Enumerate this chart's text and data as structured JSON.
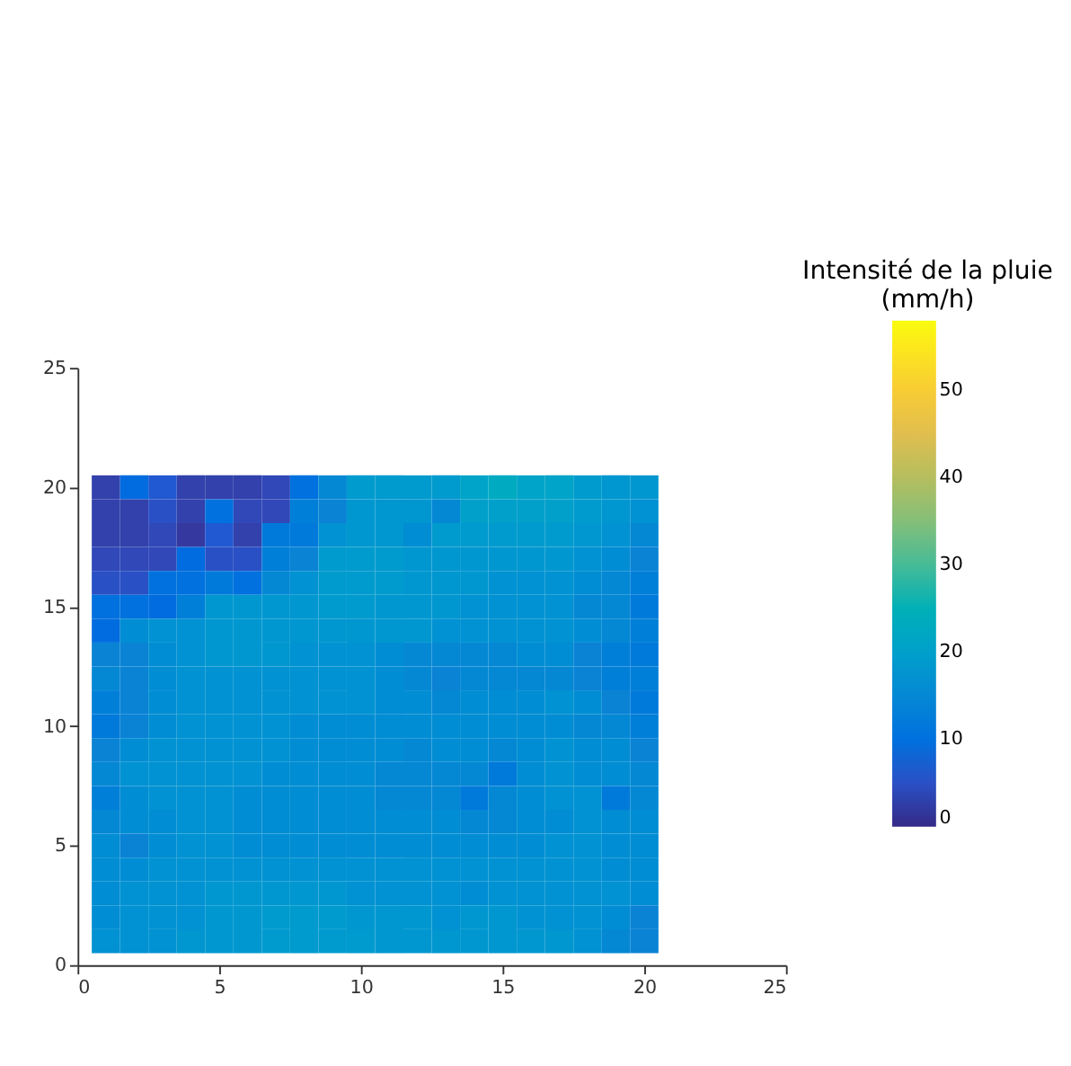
{
  "chart_data": {
    "type": "heatmap",
    "clabel": "Intensité de la pluie\n(mm/h)",
    "x": [
      1,
      2,
      3,
      4,
      5,
      6,
      7,
      8,
      9,
      10,
      11,
      12,
      13,
      14,
      15,
      16,
      17,
      18,
      19,
      20
    ],
    "y": [
      20,
      19,
      18,
      17,
      16,
      15,
      14,
      13,
      12,
      11,
      10,
      9,
      8,
      7,
      6,
      5,
      4,
      3,
      2,
      1
    ],
    "xlim": [
      0,
      25
    ],
    "ylim": [
      0,
      25
    ],
    "xticks": [
      0,
      5,
      10,
      15,
      20,
      25
    ],
    "yticks": [
      0,
      5,
      10,
      15,
      20,
      25
    ],
    "clim": [
      0,
      58
    ],
    "cticks": [
      0,
      10,
      20,
      30,
      40,
      50
    ],
    "grid": false,
    "cells": [
      [
        3,
        9,
        6,
        3,
        3,
        3,
        4,
        10,
        15,
        19,
        19,
        19,
        19,
        21,
        23,
        21,
        21,
        19,
        18,
        18
      ],
      [
        3,
        3,
        5,
        3,
        10,
        4,
        4,
        13,
        14,
        18,
        18,
        18,
        15,
        20,
        20,
        20,
        20,
        19,
        18,
        17
      ],
      [
        3,
        3,
        4,
        2,
        6,
        3,
        12,
        12,
        17,
        18,
        18,
        16,
        19,
        19,
        19,
        19,
        19,
        18,
        17,
        15
      ],
      [
        4,
        4,
        4,
        9,
        5,
        5,
        13,
        14,
        19,
        19,
        19,
        18,
        18,
        18,
        18,
        18,
        18,
        17,
        16,
        14
      ],
      [
        5,
        5,
        10,
        10,
        12,
        10,
        15,
        17,
        19,
        19,
        19,
        18,
        18,
        18,
        17,
        17,
        17,
        16,
        15,
        13
      ],
      [
        10,
        10,
        9,
        13,
        18,
        18,
        18,
        18,
        19,
        19,
        18,
        18,
        18,
        17,
        17,
        17,
        17,
        15,
        15,
        12
      ],
      [
        9,
        16,
        17,
        17,
        18,
        18,
        18,
        18,
        18,
        18,
        18,
        18,
        17,
        17,
        17,
        17,
        17,
        16,
        15,
        13
      ],
      [
        14,
        14,
        16,
        17,
        18,
        18,
        18,
        17,
        17,
        17,
        16,
        15,
        15,
        15,
        15,
        16,
        16,
        14,
        13,
        12
      ],
      [
        15,
        14,
        16,
        17,
        17,
        17,
        17,
        17,
        17,
        17,
        16,
        15,
        14,
        15,
        15,
        15,
        15,
        14,
        13,
        13
      ],
      [
        13,
        14,
        16,
        17,
        17,
        17,
        17,
        17,
        17,
        17,
        16,
        16,
        15,
        16,
        16,
        16,
        17,
        16,
        14,
        12
      ],
      [
        12,
        14,
        16,
        17,
        17,
        17,
        17,
        16,
        16,
        16,
        16,
        16,
        16,
        16,
        16,
        16,
        16,
        15,
        15,
        13
      ],
      [
        14,
        16,
        17,
        17,
        17,
        17,
        17,
        16,
        16,
        16,
        16,
        15,
        16,
        16,
        15,
        16,
        17,
        16,
        16,
        14
      ],
      [
        15,
        17,
        17,
        17,
        17,
        17,
        16,
        16,
        16,
        16,
        15,
        15,
        15,
        15,
        12,
        16,
        17,
        16,
        16,
        15
      ],
      [
        13,
        16,
        17,
        17,
        17,
        16,
        16,
        16,
        16,
        16,
        15,
        15,
        15,
        12,
        15,
        16,
        17,
        17,
        12,
        15
      ],
      [
        15,
        16,
        16,
        17,
        17,
        16,
        16,
        16,
        16,
        16,
        16,
        16,
        16,
        15,
        15,
        16,
        16,
        17,
        16,
        16
      ],
      [
        16,
        14,
        16,
        17,
        17,
        16,
        16,
        16,
        16,
        16,
        16,
        16,
        16,
        16,
        16,
        16,
        17,
        17,
        16,
        16
      ],
      [
        16,
        16,
        17,
        17,
        17,
        17,
        17,
        17,
        17,
        17,
        17,
        17,
        17,
        17,
        17,
        17,
        17,
        17,
        16,
        16
      ],
      [
        16,
        17,
        17,
        17,
        18,
        18,
        18,
        18,
        18,
        17,
        17,
        17,
        17,
        16,
        17,
        17,
        17,
        17,
        17,
        16
      ],
      [
        16,
        17,
        17,
        17,
        18,
        18,
        19,
        19,
        19,
        18,
        18,
        18,
        17,
        18,
        18,
        17,
        17,
        17,
        16,
        14
      ],
      [
        17,
        17,
        17,
        18,
        18,
        18,
        19,
        19,
        19,
        19,
        18,
        18,
        18,
        18,
        18,
        18,
        18,
        17,
        15,
        14
      ]
    ]
  }
}
